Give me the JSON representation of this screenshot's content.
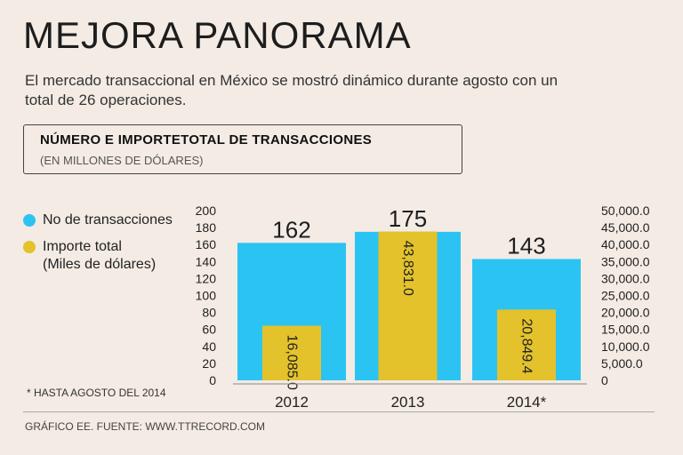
{
  "header": {
    "title": "MEJORA PANORAMA",
    "subtitle": "El mercado transaccional  en México se mostró dinámico durante agosto con un total de 26 operaciones."
  },
  "box": {
    "title": "NÚMERO E IMPORTETOTAL DE TRANSACCIONES",
    "subtitle": "(EN MILLONES DE DÓLARES)"
  },
  "legend": {
    "items": [
      {
        "label": "No de transacciones",
        "color": "#2bc4f2"
      },
      {
        "label": "Importe total\n(Miles de dólares)",
        "color": "#e3c22b"
      }
    ]
  },
  "footer": {
    "note": "* HASTA AGOSTO DEL 2014",
    "source": "GRÁFICO EE. FUENTE: WWW.TTRECORD.COM"
  },
  "chart_data": {
    "type": "bar",
    "categories": [
      "2012",
      "2013",
      "2014*"
    ],
    "series": [
      {
        "name": "No de transacciones",
        "axis": "left",
        "color": "#2bc4f2",
        "values": [
          162,
          175,
          143
        ],
        "labels": [
          "162",
          "175",
          "143"
        ]
      },
      {
        "name": "Importe total (Miles de dólares)",
        "axis": "right",
        "color": "#e3c22b",
        "values": [
          16085.0,
          43831.0,
          20849.4
        ],
        "labels": [
          "16,085.0",
          "43,831.0",
          "20,849.4"
        ]
      }
    ],
    "left_axis": {
      "min": 0,
      "max": 200,
      "ticks": [
        "0",
        "20",
        "40",
        "60",
        "80",
        "100",
        "120",
        "140",
        "160",
        "180",
        "200"
      ]
    },
    "right_axis": {
      "min": 0,
      "max": 50000,
      "ticks": [
        "0",
        "5,000.0",
        "10,000.0",
        "15,000.0",
        "20,000.0",
        "25,000.0",
        "30,000.0",
        "35,000.0",
        "40,000.0",
        "45,000.0",
        "50,000.0"
      ]
    }
  }
}
